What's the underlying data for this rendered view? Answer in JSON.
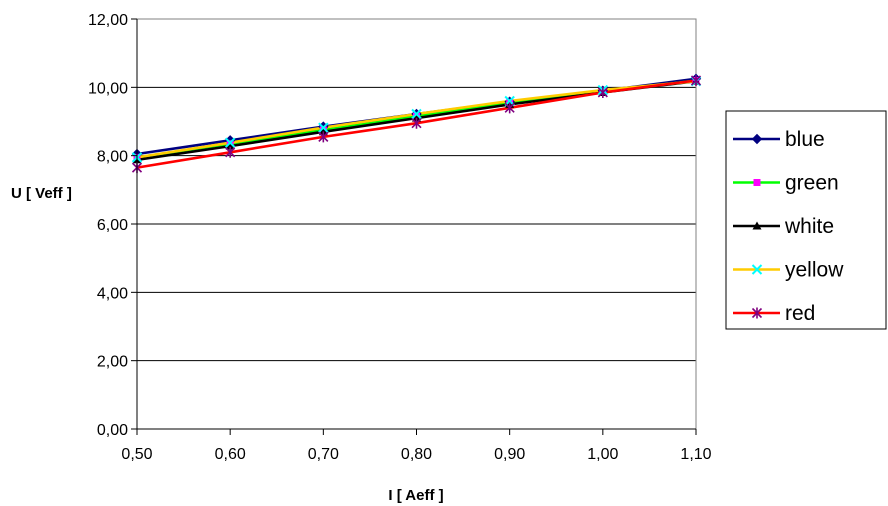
{
  "chart_data": {
    "type": "line",
    "title": "",
    "xlabel": "I [ Aeff ]",
    "ylabel": "U [ Veff ]",
    "x": [
      0.5,
      0.6,
      0.7,
      0.8,
      0.9,
      1.0,
      1.1
    ],
    "x_tick_labels": [
      "0,50",
      "0,60",
      "0,70",
      "0,80",
      "0,90",
      "1,00",
      "1,10"
    ],
    "y_tick_values": [
      0,
      2,
      4,
      6,
      8,
      10,
      12
    ],
    "y_tick_labels": [
      "0,00",
      "2,00",
      "4,00",
      "6,00",
      "8,00",
      "10,00",
      "12,00"
    ],
    "xlim": [
      0.5,
      1.1
    ],
    "ylim": [
      0,
      12
    ],
    "grid": "horizontal",
    "legend_position": "right",
    "series": [
      {
        "name": "blue",
        "color": "#000080",
        "marker": "diamond",
        "values": [
          8.05,
          8.45,
          8.85,
          9.22,
          9.58,
          9.9,
          10.25
        ]
      },
      {
        "name": "green",
        "color": "#00ff00",
        "marker": "square",
        "values": [
          7.95,
          8.35,
          8.75,
          9.15,
          9.55,
          9.87,
          10.2
        ]
      },
      {
        "name": "white",
        "color": "#000000",
        "marker": "triangle",
        "values": [
          7.88,
          8.28,
          8.7,
          9.1,
          9.5,
          9.85,
          10.18
        ]
      },
      {
        "name": "yellow",
        "color": "#ffcc00",
        "marker": "x",
        "values": [
          7.95,
          8.38,
          8.82,
          9.22,
          9.6,
          9.92,
          10.18
        ]
      },
      {
        "name": "red",
        "color": "#ff0000",
        "marker": "asterisk",
        "values": [
          7.65,
          8.1,
          8.55,
          8.95,
          9.4,
          9.85,
          10.2
        ]
      }
    ],
    "marker_colors": {
      "diamond": "#000080",
      "square": "#ff00ff",
      "triangle": "#000000",
      "x": "#00ffff",
      "asterisk": "#800080"
    }
  }
}
